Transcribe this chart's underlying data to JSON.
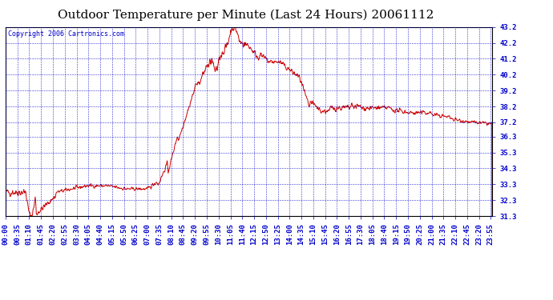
{
  "title": "Outdoor Temperature per Minute (Last 24 Hours) 20061112",
  "copyright": "Copyright 2006 Cartronics.com",
  "background_color": "#FFFFFF",
  "plot_bg_color": "#FFFFFF",
  "line_color": "#CC0000",
  "grid_color": "#0000CC",
  "text_color": "#0000CC",
  "border_color": "#000000",
  "yticks": [
    31.3,
    32.3,
    33.3,
    34.3,
    35.3,
    36.3,
    37.2,
    38.2,
    39.2,
    40.2,
    41.2,
    42.2,
    43.2
  ],
  "ymin": 31.3,
  "ymax": 43.2,
  "title_fontsize": 11,
  "tick_fontsize": 6.5,
  "copyright_fontsize": 6,
  "xtick_step": 35
}
